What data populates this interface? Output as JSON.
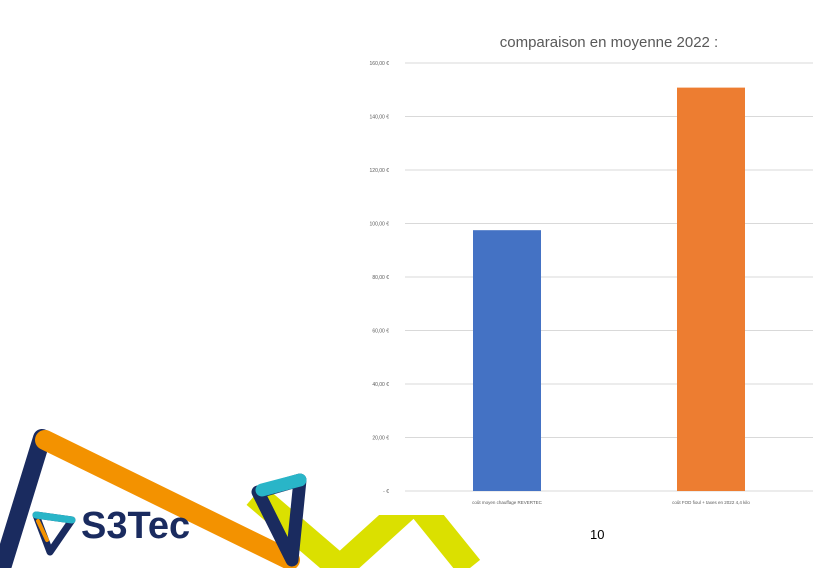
{
  "chart_data": {
    "type": "bar",
    "title": "comparaison en moyenne 2022 :",
    "categories": [
      "coût moyen chauffage REVERTEC",
      "coût FOD fioul + taxes en 2022 4,4 kilo"
    ],
    "values": [
      97.5,
      150.8
    ],
    "ylim": [
      0,
      160
    ],
    "yticks": [
      "- €",
      "20,00 €",
      "40,00 €",
      "60,00 €",
      "80,00 €",
      "100,00 €",
      "120,00 €",
      "140,00 €",
      "160,00 €"
    ],
    "xlabel": "",
    "ylabel": "",
    "grid": true,
    "colors": [
      "#4472c4",
      "#ed7d31"
    ]
  },
  "brand": {
    "name": "S3Tec",
    "colors": {
      "navy": "#1a2b5f",
      "orange": "#f39200",
      "teal": "#29b5c8",
      "yellow": "#dbe000"
    }
  },
  "page": {
    "number": "10"
  }
}
